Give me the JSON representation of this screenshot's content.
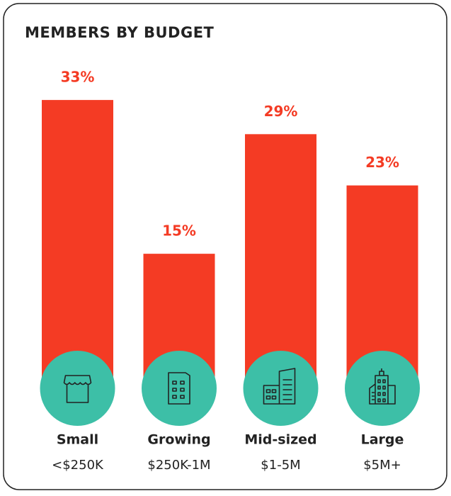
{
  "chart_data": {
    "type": "bar",
    "title": "MEMBERS BY BUDGET",
    "categories": [
      "Small",
      "Growing",
      "Mid-sized",
      "Large"
    ],
    "subcategories": [
      "<$250K",
      "$250K-1M",
      "$1-5M",
      "$5M+"
    ],
    "values": [
      33,
      15,
      29,
      23
    ],
    "value_labels": [
      "33%",
      "15%",
      "29%",
      "23%"
    ],
    "color": "#f43b24",
    "ylim": [
      0,
      35
    ]
  }
}
